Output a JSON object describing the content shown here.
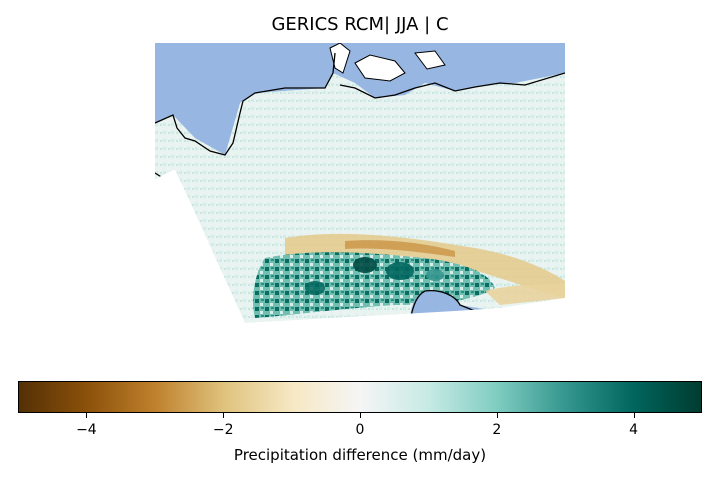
{
  "title": "GERICS RCM| JJA | C",
  "map": {
    "sea_color": "#97b6e1",
    "coast_color": "#000000",
    "masked_color": "#ffffff"
  },
  "colorbar": {
    "colormap": "BrBG",
    "range": [
      -5,
      5
    ],
    "ticks": [
      {
        "value": -4,
        "label": "−4"
      },
      {
        "value": -2,
        "label": "−2"
      },
      {
        "value": 0,
        "label": "0"
      },
      {
        "value": 2,
        "label": "2"
      },
      {
        "value": 4,
        "label": "4"
      }
    ],
    "label": "Precipitation difference (mm/day)",
    "stops": [
      "#543005",
      "#8c510a",
      "#bf812d",
      "#dfc27d",
      "#f6e8c3",
      "#f5f5f5",
      "#c7eae5",
      "#80cdc1",
      "#35978f",
      "#01665e",
      "#003c30"
    ]
  }
}
